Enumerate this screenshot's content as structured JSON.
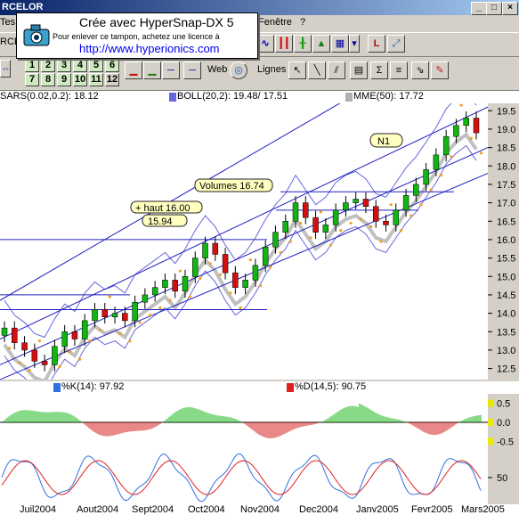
{
  "window": {
    "title": "RCELOR",
    "minimize": "_",
    "maximize": "□",
    "close": "×"
  },
  "menu": {
    "items": [
      {
        "label": "Tes"
      },
      {
        "label": "Fenêtre"
      },
      {
        "label": "?"
      }
    ]
  },
  "stamp": {
    "line1": "Crée avec HyperSnap-DX 5",
    "line2": "Pour enlever ce tampon, achetez une licence à",
    "line3": "http://www.hyperionics.com"
  },
  "toolbar": {
    "left_label": "RCE",
    "numbers_row1": [
      "1",
      "2",
      "3",
      "4",
      "5",
      "6"
    ],
    "numbers_row2": [
      "7",
      "8",
      "9",
      "10",
      "11",
      "12"
    ],
    "web_label": "Web",
    "lignes_label": "Lignes"
  },
  "indicators": {
    "sar": "SARS(0.02,0.2): 18.12",
    "boll": "BOLL(20,2): 19.48/ 17.51",
    "mme": "MME(50): 17.72",
    "stochk": "%K(14): 97.92",
    "stochd": "%D(14,5): 90.75"
  },
  "annotations": {
    "n1": "N1",
    "volumes": "Volumes 16.74",
    "haut": "+ haut 16.00",
    "v1594": "15.94"
  },
  "colors": {
    "up": "#11b511",
    "down": "#d21010",
    "sar": "#f0a020",
    "boll": "#6666dd",
    "mme": "#b0b0b0",
    "trend": "#2020c0",
    "stochk": "#3070e0",
    "stochd": "#e02020"
  },
  "chart_data": [
    {
      "type": "candlestick",
      "yaxis_ticks": [
        "19.5",
        "19.0",
        "18.5",
        "18.0",
        "17.5",
        "17.0",
        "16.5",
        "16.0",
        "15.5",
        "15.0",
        "14.5",
        "14.0",
        "13.5",
        "13.0",
        "12.5"
      ],
      "ylim": [
        12.2,
        19.7
      ],
      "xaxis_ticks": [
        "Juil2004",
        "Aout2004",
        "Sept2004",
        "Oct2004",
        "Nov2004",
        "Dec2004",
        "Janv2005",
        "Fevr2005",
        "Mars2005"
      ],
      "close_approx": [
        13.6,
        13.2,
        13.0,
        12.7,
        12.6,
        13.1,
        13.5,
        13.3,
        13.8,
        14.1,
        13.9,
        14.0,
        13.8,
        14.3,
        14.5,
        14.7,
        14.9,
        14.6,
        15.0,
        15.5,
        15.9,
        15.6,
        15.1,
        14.7,
        14.9,
        15.3,
        15.8,
        16.2,
        16.5,
        17.0,
        16.6,
        16.2,
        16.4,
        16.8,
        17.0,
        17.1,
        16.9,
        16.5,
        16.4,
        16.8,
        17.2,
        17.5,
        17.9,
        18.3,
        18.8,
        19.1,
        19.3,
        18.9
      ]
    },
    {
      "type": "bar",
      "name": "macd-histogram",
      "yaxis_ticks": [
        "0.5",
        "0.0",
        "-0.5"
      ],
      "ylim": [
        -0.7,
        0.7
      ]
    },
    {
      "type": "line",
      "name": "stochastic",
      "yaxis_ticks": [
        "50"
      ],
      "ylim": [
        0,
        100
      ]
    }
  ]
}
